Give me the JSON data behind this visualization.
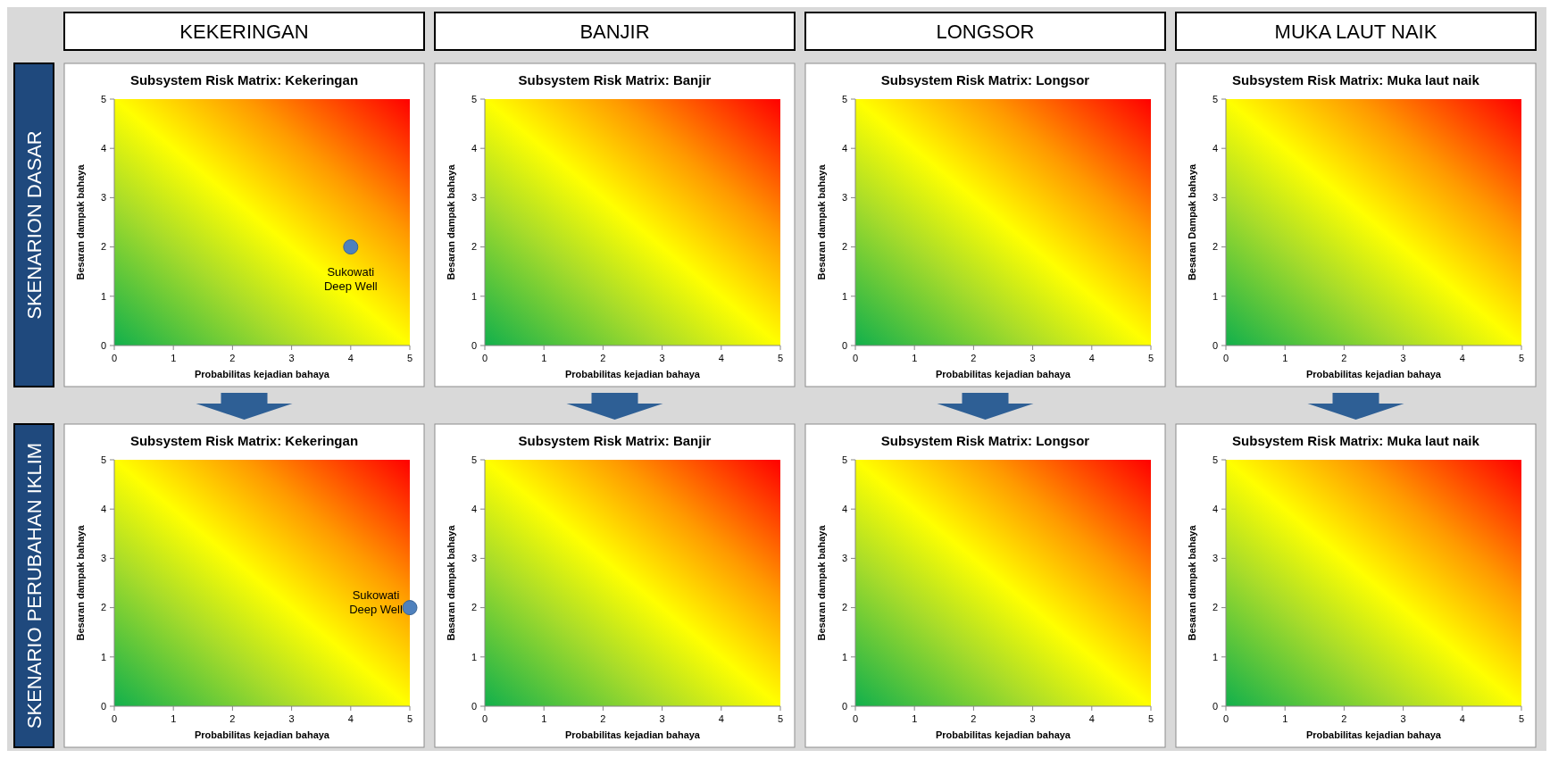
{
  "chart_data": [
    {
      "type": "other",
      "annotations": [
        "KEKERINGAN",
        "BANJIR",
        "LONGSOR",
        "MUKA LAUT NAIK",
        "SKENARION DASAR",
        "SKENARIO PERUBAHAN IKLIM"
      ]
    },
    {
      "type": "scatter",
      "title": "Subsystem Risk Matrix: Kekeringan",
      "xlabel": "Probabilitas kejadian bahaya",
      "ylabel": "Besaran dampak bahaya",
      "xlim": [
        0,
        5
      ],
      "ylim": [
        0,
        5
      ],
      "xticks": [
        0,
        1,
        2,
        3,
        4,
        5
      ],
      "yticks": [
        0,
        1,
        2,
        3,
        4,
        5
      ],
      "marker": "circle",
      "series": [
        {
          "name": "Sukowati Deep Well",
          "color": "#4f81bd",
          "x": [
            4
          ],
          "values": [
            2
          ]
        }
      ]
    },
    {
      "type": "scatter",
      "title": "Subsystem Risk Matrix: Banjir",
      "xlabel": "Probabilitas kejadian bahaya",
      "ylabel": "Besaran dampak bahaya",
      "xlim": [
        0,
        5
      ],
      "ylim": [
        0,
        5
      ],
      "xticks": [
        0,
        1,
        2,
        3,
        4,
        5
      ],
      "yticks": [
        0,
        1,
        2,
        3,
        4,
        5
      ]
    },
    {
      "type": "scatter",
      "title": "Subsystem Risk Matrix: Longsor",
      "xlabel": "Probabilitas kejadian bahaya",
      "ylabel": "Besaran dampak bahaya",
      "xlim": [
        0,
        5
      ],
      "ylim": [
        0,
        5
      ],
      "xticks": [
        0,
        1,
        2,
        3,
        4,
        5
      ],
      "yticks": [
        0,
        1,
        2,
        3,
        4,
        5
      ]
    },
    {
      "type": "scatter",
      "title": "Subsystem Risk Matrix: Muka laut naik",
      "xlabel": "Probabilitas kejadian bahaya",
      "ylabel": "Besaran Dampak bahaya",
      "xlim": [
        0,
        5
      ],
      "ylim": [
        0,
        5
      ],
      "xticks": [
        0,
        1,
        2,
        3,
        4,
        5
      ],
      "yticks": [
        0,
        1,
        2,
        3,
        4,
        5
      ]
    },
    {
      "type": "scatter",
      "title": "Subsystem Risk Matrix: Kekeringan",
      "xlabel": "Probabilitas kejadian bahaya",
      "ylabel": "Besaran dampak bahaya",
      "xlim": [
        0,
        5
      ],
      "ylim": [
        0,
        5
      ],
      "xticks": [
        0,
        1,
        2,
        3,
        4,
        5
      ],
      "yticks": [
        0,
        1,
        2,
        3,
        4,
        5
      ],
      "marker": "circle",
      "series": [
        {
          "name": "Sukowati Deep Well",
          "color": "#4f81bd",
          "x": [
            5
          ],
          "values": [
            2
          ]
        }
      ]
    },
    {
      "type": "scatter",
      "title": "Subsystem Risk Matrix: Banjir",
      "xlabel": "Probabilitas kejadian bahaya",
      "ylabel": "Basaran dampak bahaya",
      "xlim": [
        0,
        5
      ],
      "ylim": [
        0,
        5
      ],
      "xticks": [
        0,
        1,
        2,
        3,
        4,
        5
      ],
      "yticks": [
        0,
        1,
        2,
        3,
        4,
        5
      ]
    },
    {
      "type": "scatter",
      "title": "Subsystem Risk Matrix: Longsor",
      "xlabel": "Probabilitas kejadian bahaya",
      "ylabel": "Besaran dampak bahaya",
      "xlim": [
        0,
        5
      ],
      "ylim": [
        0,
        5
      ],
      "xticks": [
        0,
        1,
        2,
        3,
        4,
        5
      ],
      "yticks": [
        0,
        1,
        2,
        3,
        4,
        5
      ]
    },
    {
      "type": "scatter",
      "title": "Subsystem Risk Matrix: Muka laut naik",
      "xlabel": "Probabilitas kejadian bahaya",
      "ylabel": "Besaran dampak bahaya",
      "xlim": [
        0,
        5
      ],
      "ylim": [
        0,
        5
      ],
      "xticks": [
        0,
        1,
        2,
        3,
        4,
        5
      ],
      "yticks": [
        0,
        1,
        2,
        3,
        4,
        5
      ]
    }
  ]
}
